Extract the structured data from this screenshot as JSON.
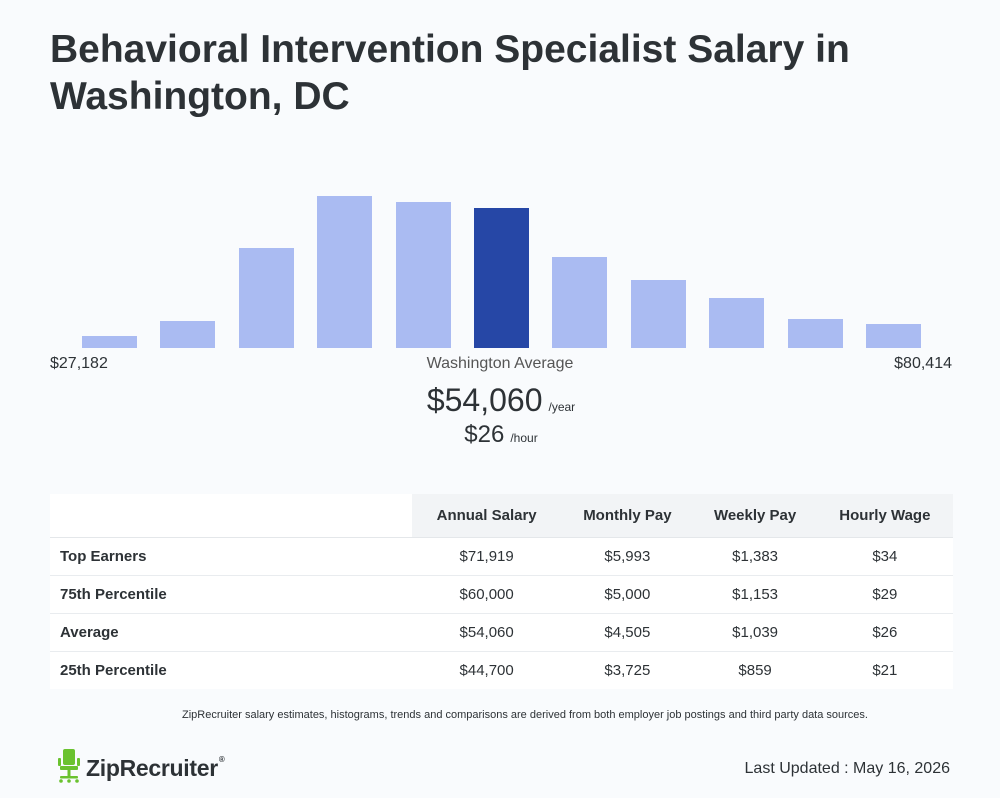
{
  "page": {
    "title": "Behavioral Intervention Specialist Salary in Washington, DC"
  },
  "chart_data": {
    "type": "bar",
    "categories": [
      "1",
      "2",
      "3",
      "4",
      "5",
      "6",
      "7",
      "8",
      "9",
      "10",
      "11"
    ],
    "values": [
      8,
      18,
      66,
      100,
      96,
      92,
      60,
      45,
      33,
      19,
      16
    ],
    "highlight_index": 5,
    "highlight_color": "#2647a6",
    "bar_color": "#aabbf2",
    "range_min": "$27,182",
    "range_max": "$80,414"
  },
  "average": {
    "label": "Washington Average",
    "annual": "$54,060",
    "annual_unit": "/year",
    "hourly": "$26",
    "hourly_unit": "/hour"
  },
  "table": {
    "headers": [
      "Annual Salary",
      "Monthly Pay",
      "Weekly Pay",
      "Hourly Wage"
    ],
    "rows": [
      {
        "label": "Top Earners",
        "values": [
          "$71,919",
          "$5,993",
          "$1,383",
          "$34"
        ]
      },
      {
        "label": "75th Percentile",
        "values": [
          "$60,000",
          "$5,000",
          "$1,153",
          "$29"
        ]
      },
      {
        "label": "Average",
        "values": [
          "$54,060",
          "$4,505",
          "$1,039",
          "$26"
        ]
      },
      {
        "label": "25th Percentile",
        "values": [
          "$44,700",
          "$3,725",
          "$859",
          "$21"
        ]
      }
    ]
  },
  "footer": {
    "note": "ZipRecruiter salary estimates, histograms, trends and comparisons are derived from both employer job postings and third party data sources.",
    "brand": "ZipRecruiter",
    "brand_mark": "®",
    "brand_icon": "chair-icon",
    "brand_color": "#6ac22f",
    "updated": "Last Updated : May 16, 2026"
  }
}
